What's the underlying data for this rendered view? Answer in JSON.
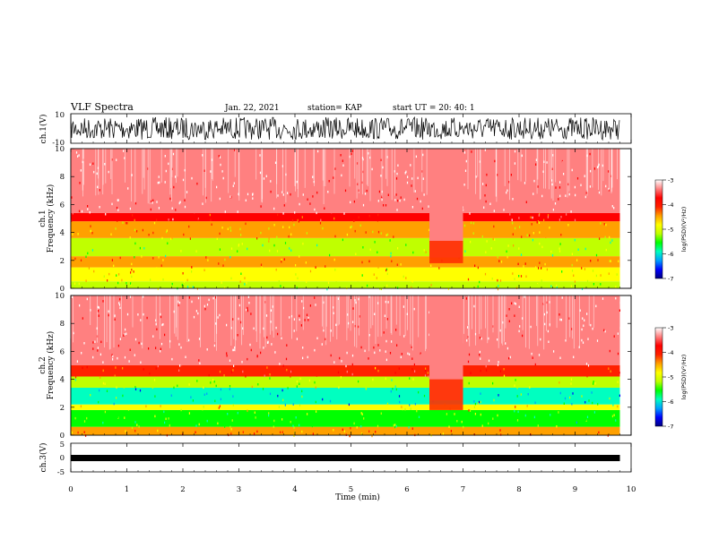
{
  "header": {
    "title": "VLF Spectra",
    "date": "Jan. 22, 2021",
    "station": "station= KAP",
    "start": "start  UT =  20: 40: 1"
  },
  "chart_data": [
    {
      "type": "line",
      "name": "ch1-waveform",
      "ylabel": "ch.1(V)",
      "ylim": [
        -10,
        10
      ],
      "yticks": [
        "10",
        "-10"
      ],
      "xlim": [
        0,
        10
      ]
    },
    {
      "type": "heatmap",
      "name": "ch1-spectrogram",
      "ylabel": "ch.1\nFrequency (kHz)",
      "ylabel_line1": "ch.1",
      "ylabel_line2": "Frequency (kHz)",
      "ylim": [
        0,
        10
      ],
      "yticks": [
        "0",
        "2",
        "4",
        "6",
        "8",
        "10"
      ],
      "xlim": [
        0,
        10
      ],
      "data_end_min": 9.8,
      "gap_min": [
        6.4,
        7.0
      ],
      "colorbar": {
        "label": "log(PSD)(V²/Hz)",
        "range": [
          -7,
          -3
        ],
        "ticks": [
          "-3",
          "-4",
          "-5",
          "-6",
          "-7"
        ]
      },
      "bands_khz": [
        {
          "from": 0,
          "to": 0.5,
          "level": -5.2
        },
        {
          "from": 0.5,
          "to": 1.5,
          "level": -4.8
        },
        {
          "from": 1.5,
          "to": 2.3,
          "level": -4.4
        },
        {
          "from": 2.3,
          "to": 3.6,
          "level": -5.3
        },
        {
          "from": 3.6,
          "to": 4.8,
          "level": -4.6
        },
        {
          "from": 4.8,
          "to": 5.4,
          "level": -3.8
        },
        {
          "from": 5.4,
          "to": 10,
          "level": -3.2
        }
      ]
    },
    {
      "type": "heatmap",
      "name": "ch2-spectrogram",
      "ylabel_line1": "ch.2",
      "ylabel_line2": "Frequency (kHz)",
      "ylim": [
        0,
        10
      ],
      "yticks": [
        "0",
        "2",
        "4",
        "6",
        "8",
        "10"
      ],
      "xlim": [
        0,
        10
      ],
      "data_end_min": 9.8,
      "gap_min": [
        6.4,
        7.0
      ],
      "colorbar": {
        "label": "log(PSD)(V²/Hz)",
        "range": [
          -7,
          -3
        ],
        "ticks": [
          "-3",
          "-4",
          "-5",
          "-6",
          "-7"
        ]
      },
      "bands_khz": [
        {
          "from": 0,
          "to": 0.6,
          "level": -4.3
        },
        {
          "from": 0.6,
          "to": 1.8,
          "level": -5.4
        },
        {
          "from": 1.8,
          "to": 2.2,
          "level": -4.7
        },
        {
          "from": 2.2,
          "to": 3.4,
          "level": -5.9
        },
        {
          "from": 3.4,
          "to": 4.2,
          "level": -5.2
        },
        {
          "from": 4.2,
          "to": 5.0,
          "level": -4.0
        },
        {
          "from": 5.0,
          "to": 10,
          "level": -3.2
        }
      ]
    },
    {
      "type": "line",
      "name": "ch3-waveform",
      "ylabel": "ch.3(V)",
      "ylim": [
        -5,
        5
      ],
      "yticks": [
        "5",
        "0",
        "-5"
      ],
      "level_v": -2,
      "xlim": [
        0,
        10
      ]
    }
  ],
  "xaxis": {
    "label": "Time (min)",
    "ticks": [
      "0",
      "1",
      "2",
      "3",
      "4",
      "5",
      "6",
      "7",
      "8",
      "9",
      "10"
    ]
  },
  "colors": {
    "colormap": [
      "#000080",
      "#0000ff",
      "#00a0ff",
      "#00ffc0",
      "#00ff00",
      "#c0ff00",
      "#ffff00",
      "#ffa000",
      "#ff2000",
      "#ff0000",
      "#ff8080",
      "#ffffff"
    ]
  }
}
